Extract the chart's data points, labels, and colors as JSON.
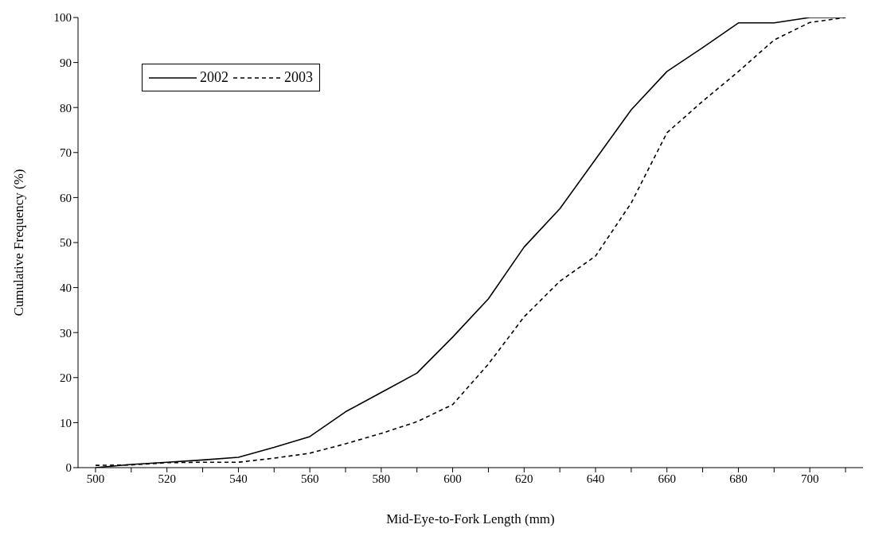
{
  "chart_data": {
    "type": "line",
    "xlabel": "Mid-Eye-to-Fork Length (mm)",
    "ylabel": "Cumulative Frequency (%)",
    "categories": [
      "500",
      null,
      "520",
      null,
      "540",
      null,
      "560",
      null,
      "580",
      null,
      "600",
      null,
      "620",
      null,
      "640",
      null,
      "660",
      null,
      "680",
      null,
      "700",
      null
    ],
    "series": [
      {
        "name": "2002",
        "color": "#000000",
        "line_style": "solid",
        "values": [
          0,
          0.7,
          1.2,
          1.7,
          2.3,
          4.5,
          6.9,
          12.4,
          16.7,
          21,
          29,
          37.5,
          49,
          57.5,
          68.5,
          79.5,
          88,
          93.3,
          98.8,
          98.8,
          100,
          100
        ]
      },
      {
        "name": "2003",
        "color": "#000000",
        "line_style": "dashed",
        "values": [
          0.5,
          0.6,
          1.1,
          1.2,
          1.2,
          2.1,
          3.2,
          5.3,
          7.6,
          10.2,
          14,
          23,
          33.5,
          41.4,
          47,
          58.8,
          74.4,
          81.4,
          88,
          95,
          98.9,
          100
        ]
      }
    ],
    "ylim": [
      0,
      100
    ],
    "yticks": [
      0,
      10,
      20,
      30,
      40,
      50,
      60,
      70,
      80,
      90,
      100
    ],
    "legend": "top left",
    "marker": "none"
  }
}
